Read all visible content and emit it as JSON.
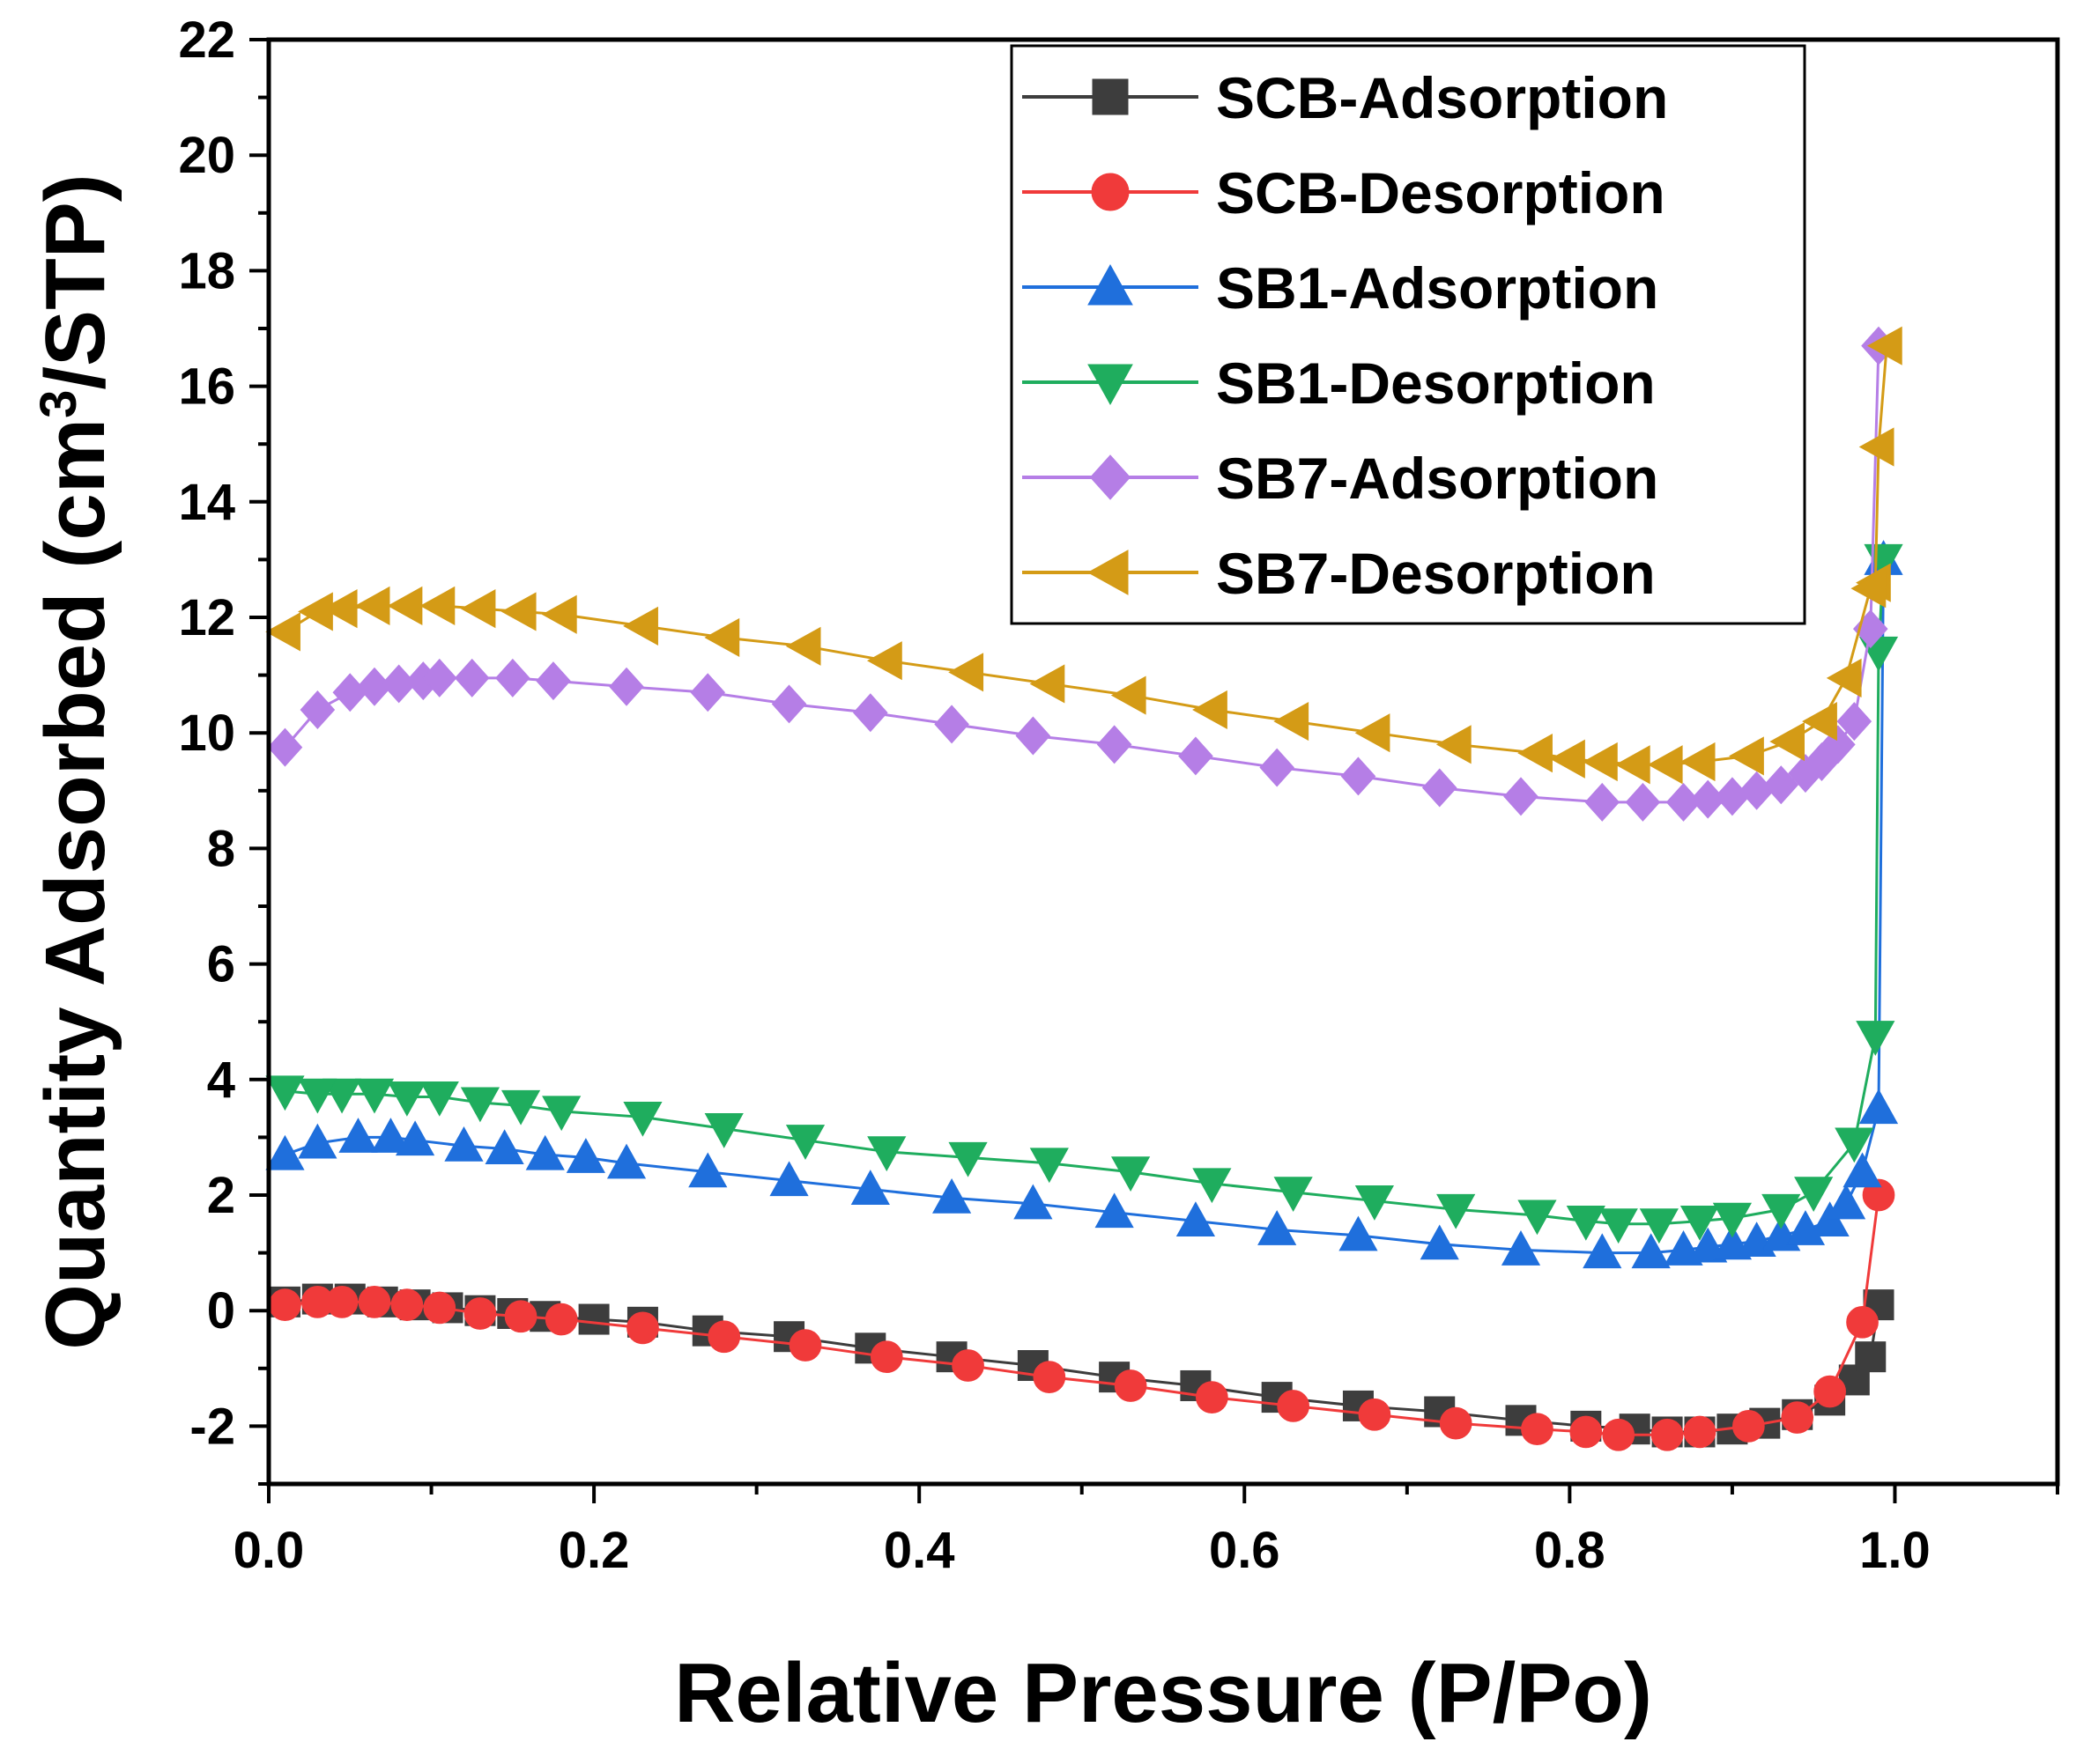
{
  "chart_data": {
    "type": "line",
    "xlabel": "Relative Pressure (P/Po)",
    "ylabel_prefix": "Quantity Adsorbed (cm",
    "ylabel_sup": "3",
    "ylabel_suffix": "/STP)",
    "xlim": [
      0.0,
      1.1
    ],
    "ylim": [
      -3,
      22
    ],
    "x_ticks": [
      0.0,
      0.2,
      0.4,
      0.6,
      0.8,
      1.0
    ],
    "x_tick_labels": [
      "0.0",
      "0.2",
      "0.4",
      "0.6",
      "0.8",
      "1.0"
    ],
    "y_ticks": [
      -2,
      0,
      2,
      4,
      6,
      8,
      10,
      12,
      14,
      16,
      18,
      20,
      22
    ],
    "y_tick_labels": [
      "-2",
      "0",
      "2",
      "4",
      "6",
      "8",
      "10",
      "12",
      "14",
      "16",
      "18",
      "20",
      "22"
    ],
    "grid": false,
    "legend_position": "top-right",
    "series": [
      {
        "name": "SCB-Adsorption",
        "color": "#3d3d3d",
        "marker": "square",
        "x": [
          0.01,
          0.03,
          0.05,
          0.07,
          0.09,
          0.11,
          0.13,
          0.15,
          0.17,
          0.2,
          0.23,
          0.27,
          0.32,
          0.37,
          0.42,
          0.47,
          0.52,
          0.57,
          0.62,
          0.67,
          0.72,
          0.77,
          0.81,
          0.84,
          0.86,
          0.88,
          0.9,
          0.92,
          0.94,
          0.96,
          0.975,
          0.985,
          0.99
        ],
        "y": [
          0.15,
          0.2,
          0.2,
          0.15,
          0.1,
          0.05,
          0.0,
          -0.05,
          -0.1,
          -0.15,
          -0.2,
          -0.35,
          -0.45,
          -0.65,
          -0.8,
          -0.95,
          -1.15,
          -1.3,
          -1.5,
          -1.65,
          -1.75,
          -1.9,
          -2.0,
          -2.05,
          -2.1,
          -2.1,
          -2.05,
          -1.95,
          -1.8,
          -1.55,
          -1.2,
          -0.8,
          0.1
        ]
      },
      {
        "name": "SCB-Desorption",
        "color": "#f03a3a",
        "marker": "circle",
        "x": [
          0.99,
          0.98,
          0.96,
          0.94,
          0.91,
          0.88,
          0.86,
          0.83,
          0.81,
          0.78,
          0.73,
          0.68,
          0.63,
          0.58,
          0.53,
          0.48,
          0.43,
          0.38,
          0.33,
          0.28,
          0.23,
          0.18,
          0.155,
          0.13,
          0.105,
          0.085,
          0.065,
          0.045,
          0.03,
          0.01
        ],
        "y": [
          2.0,
          -0.2,
          -1.4,
          -1.85,
          -2.0,
          -2.1,
          -2.15,
          -2.15,
          -2.1,
          -2.05,
          -1.95,
          -1.8,
          -1.65,
          -1.5,
          -1.3,
          -1.15,
          -0.95,
          -0.8,
          -0.6,
          -0.45,
          -0.3,
          -0.15,
          -0.1,
          -0.05,
          0.05,
          0.1,
          0.15,
          0.15,
          0.15,
          0.1
        ]
      },
      {
        "name": "SB1-Adsorption",
        "color": "#1f6fdc",
        "marker": "triangle-up",
        "x": [
          0.01,
          0.03,
          0.055,
          0.075,
          0.09,
          0.12,
          0.145,
          0.17,
          0.195,
          0.22,
          0.27,
          0.32,
          0.37,
          0.42,
          0.47,
          0.52,
          0.57,
          0.62,
          0.67,
          0.72,
          0.77,
          0.82,
          0.85,
          0.87,
          0.885,
          0.9,
          0.915,
          0.93,
          0.945,
          0.96,
          0.97,
          0.98,
          0.99,
          0.993
        ],
        "y": [
          2.7,
          2.9,
          3.0,
          3.0,
          2.95,
          2.85,
          2.8,
          2.7,
          2.65,
          2.55,
          2.4,
          2.25,
          2.1,
          1.95,
          1.85,
          1.7,
          1.55,
          1.4,
          1.3,
          1.15,
          1.05,
          1.0,
          1.0,
          1.05,
          1.1,
          1.15,
          1.2,
          1.3,
          1.4,
          1.55,
          1.85,
          2.4,
          3.5,
          13.0
        ]
      },
      {
        "name": "SB1-Desorption",
        "color": "#1fad5e",
        "marker": "triangle-down",
        "x": [
          0.993,
          0.99,
          0.988,
          0.975,
          0.95,
          0.93,
          0.9,
          0.88,
          0.855,
          0.83,
          0.81,
          0.78,
          0.73,
          0.68,
          0.63,
          0.58,
          0.53,
          0.48,
          0.43,
          0.38,
          0.33,
          0.28,
          0.23,
          0.18,
          0.155,
          0.13,
          0.105,
          0.085,
          0.065,
          0.045,
          0.03,
          0.01
        ],
        "y": [
          13.0,
          11.4,
          4.75,
          2.9,
          2.05,
          1.75,
          1.6,
          1.55,
          1.5,
          1.5,
          1.55,
          1.65,
          1.75,
          1.9,
          2.05,
          2.2,
          2.4,
          2.55,
          2.65,
          2.75,
          2.95,
          3.15,
          3.35,
          3.45,
          3.55,
          3.6,
          3.7,
          3.7,
          3.75,
          3.75,
          3.75,
          3.8
        ]
      },
      {
        "name": "SB7-Adsorption",
        "color": "#b57ee6",
        "marker": "diamond",
        "x": [
          0.01,
          0.03,
          0.05,
          0.065,
          0.08,
          0.095,
          0.105,
          0.125,
          0.15,
          0.175,
          0.22,
          0.27,
          0.32,
          0.37,
          0.42,
          0.47,
          0.52,
          0.57,
          0.62,
          0.67,
          0.72,
          0.77,
          0.82,
          0.845,
          0.87,
          0.885,
          0.9,
          0.915,
          0.93,
          0.945,
          0.955,
          0.965,
          0.975,
          0.985,
          0.99
        ],
        "y": [
          9.75,
          10.4,
          10.7,
          10.8,
          10.85,
          10.9,
          10.95,
          10.95,
          10.95,
          10.9,
          10.8,
          10.7,
          10.5,
          10.35,
          10.15,
          9.95,
          9.8,
          9.6,
          9.4,
          9.25,
          9.05,
          8.9,
          8.8,
          8.8,
          8.8,
          8.85,
          8.9,
          9.0,
          9.1,
          9.3,
          9.5,
          9.8,
          10.2,
          11.8,
          16.7
        ]
      },
      {
        "name": "SB7-Desorption",
        "color": "#d49b16",
        "marker": "triangle-left",
        "x": [
          0.995,
          0.99,
          0.988,
          0.985,
          0.97,
          0.955,
          0.935,
          0.91,
          0.88,
          0.86,
          0.84,
          0.82,
          0.8,
          0.78,
          0.73,
          0.68,
          0.63,
          0.58,
          0.53,
          0.48,
          0.43,
          0.38,
          0.33,
          0.28,
          0.23,
          0.18,
          0.155,
          0.13,
          0.105,
          0.085,
          0.065,
          0.045,
          0.03,
          0.01
        ],
        "y": [
          16.7,
          14.95,
          12.6,
          12.5,
          10.95,
          10.2,
          9.85,
          9.6,
          9.5,
          9.45,
          9.45,
          9.5,
          9.55,
          9.65,
          9.8,
          10.0,
          10.2,
          10.4,
          10.65,
          10.85,
          11.05,
          11.25,
          11.5,
          11.65,
          11.85,
          12.05,
          12.1,
          12.15,
          12.2,
          12.2,
          12.2,
          12.15,
          12.1,
          11.75
        ]
      }
    ]
  }
}
